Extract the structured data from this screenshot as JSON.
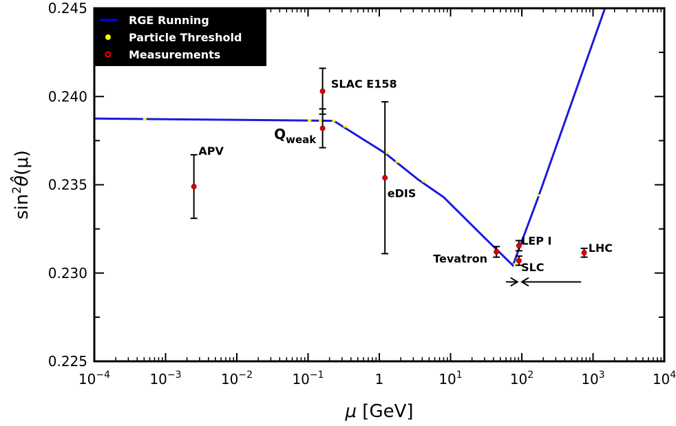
{
  "chart_data": {
    "type": "line",
    "xscale": "log",
    "xlim": [
      0.0001,
      10000
    ],
    "ylim": [
      0.225,
      0.245
    ],
    "xticks": [
      {
        "base": "10",
        "exp": "−4",
        "value": 0.0001
      },
      {
        "base": "10",
        "exp": "−3",
        "value": 0.001
      },
      {
        "base": "10",
        "exp": "−2",
        "value": 0.01
      },
      {
        "base": "10",
        "exp": "−1",
        "value": 0.1
      },
      {
        "base": "1",
        "exp": "",
        "value": 1
      },
      {
        "base": "10",
        "exp": "1",
        "value": 10
      },
      {
        "base": "10",
        "exp": "2",
        "value": 100
      },
      {
        "base": "10",
        "exp": "3",
        "value": 1000
      },
      {
        "base": "10",
        "exp": "4",
        "value": 10000
      }
    ],
    "yticks": [
      "0.225",
      "0.230",
      "0.235",
      "0.240",
      "0.245"
    ],
    "xlabel": {
      "main": "μ",
      "unit": " [GeV]"
    },
    "ylabel": {
      "prefix": "sin",
      "sup": "2",
      "theta": "θ̂",
      "arg": "(μ)"
    },
    "legend": {
      "position": "top-left",
      "entries": [
        {
          "label": "RGE Running",
          "marker": "line",
          "color": "#0000ff"
        },
        {
          "label": "Particle Threshold",
          "marker": "dot",
          "color": "#ffff00"
        },
        {
          "label": "Measurements",
          "marker": "ring",
          "color": "#ff0000"
        }
      ]
    },
    "series": [
      {
        "name": "RGE Running",
        "color": "#1a1adc",
        "points": [
          [
            0.0001,
            0.23875
          ],
          [
            0.1,
            0.23864
          ],
          [
            0.23,
            0.23862
          ],
          [
            1.2,
            0.2368
          ],
          [
            3.5,
            0.2353
          ],
          [
            8,
            0.2343
          ],
          [
            30,
            0.232
          ],
          [
            75,
            0.23043
          ],
          [
            90,
            0.2313
          ],
          [
            170,
            0.2343
          ],
          [
            1500,
            0.2451
          ]
        ]
      }
    ],
    "thresholds": [
      [
        0.00051,
        0.23873
      ],
      [
        0.105,
        0.23864
      ],
      [
        0.15,
        0.23863
      ],
      [
        0.23,
        0.23862
      ],
      [
        0.33,
        0.2383
      ],
      [
        1.27,
        0.2368
      ],
      [
        1.78,
        0.2363
      ],
      [
        4.2,
        0.2352
      ],
      [
        80.4,
        0.2305
      ],
      [
        91.2,
        0.2316
      ],
      [
        173,
        0.2344
      ]
    ],
    "measurements": [
      {
        "x": 0.0025,
        "y": 0.2349,
        "err": 0.0018
      },
      {
        "x": 0.16,
        "y": 0.2403,
        "err": 0.0013
      },
      {
        "x": 0.16,
        "y": 0.2382,
        "err": 0.0011
      },
      {
        "x": 1.2,
        "y": 0.2354,
        "err": 0.0043
      },
      {
        "x": 44,
        "y": 0.2312,
        "err": 0.0003
      },
      {
        "x": 91.2,
        "y": 0.23155,
        "err": 0.00029
      },
      {
        "x": 91.2,
        "y": 0.2307,
        "err": 0.00026
      },
      {
        "x": 750,
        "y": 0.23115,
        "err": 0.00025
      }
    ],
    "annotations": [
      {
        "text": "APV",
        "x": 0.0029,
        "y": 0.2367
      },
      {
        "text": "SLAC E158",
        "x": 0.21,
        "y": 0.2405
      },
      {
        "text": "Q",
        "sub": "weak",
        "x": 0.013,
        "y": 0.2376,
        "anchor": "start"
      },
      {
        "text": "eDIS",
        "x": 1.3,
        "y": 0.2343
      },
      {
        "text": "Tevatron",
        "x": 5.7,
        "y": 0.2306
      },
      {
        "text": "LEP I",
        "x": 98,
        "y": 0.2316
      },
      {
        "text": "SLC",
        "x": 98,
        "y": 0.2301
      },
      {
        "text": "LHC",
        "x": 860,
        "y": 0.2312
      }
    ],
    "arrows": [
      {
        "from": 60,
        "to": 87,
        "y": 0.2295
      },
      {
        "from": 680,
        "to": 100,
        "y": 0.2295
      }
    ]
  }
}
